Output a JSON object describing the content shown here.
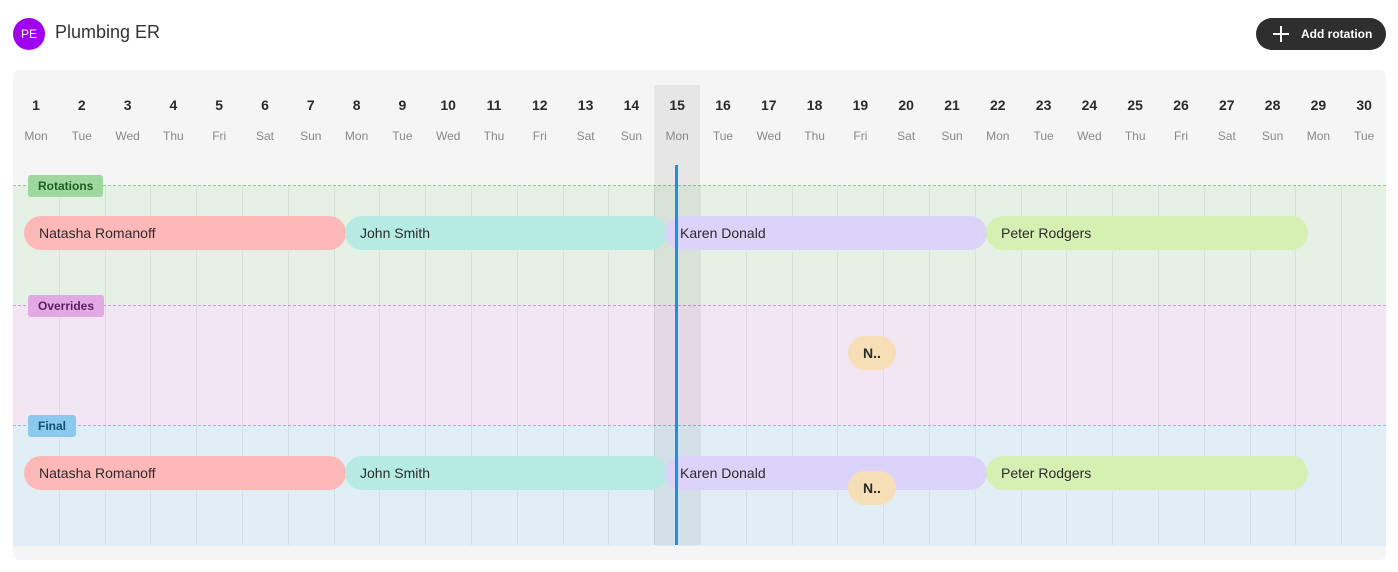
{
  "header": {
    "avatar_initials": "PE",
    "title": "Plumbing ER",
    "add_button_label": "Add rotation"
  },
  "calendar": {
    "today_day": 15,
    "days": [
      {
        "num": "1",
        "dow": "Mon"
      },
      {
        "num": "2",
        "dow": "Tue"
      },
      {
        "num": "3",
        "dow": "Wed"
      },
      {
        "num": "4",
        "dow": "Thu"
      },
      {
        "num": "5",
        "dow": "Fri"
      },
      {
        "num": "6",
        "dow": "Sat"
      },
      {
        "num": "7",
        "dow": "Sun"
      },
      {
        "num": "8",
        "dow": "Mon"
      },
      {
        "num": "9",
        "dow": "Tue"
      },
      {
        "num": "10",
        "dow": "Wed"
      },
      {
        "num": "11",
        "dow": "Thu"
      },
      {
        "num": "12",
        "dow": "Fri"
      },
      {
        "num": "13",
        "dow": "Sat"
      },
      {
        "num": "14",
        "dow": "Sun"
      },
      {
        "num": "15",
        "dow": "Mon"
      },
      {
        "num": "16",
        "dow": "Tue"
      },
      {
        "num": "17",
        "dow": "Wed"
      },
      {
        "num": "18",
        "dow": "Thu"
      },
      {
        "num": "19",
        "dow": "Fri"
      },
      {
        "num": "20",
        "dow": "Sat"
      },
      {
        "num": "21",
        "dow": "Sun"
      },
      {
        "num": "22",
        "dow": "Mon"
      },
      {
        "num": "23",
        "dow": "Tue"
      },
      {
        "num": "24",
        "dow": "Wed"
      },
      {
        "num": "25",
        "dow": "Thu"
      },
      {
        "num": "26",
        "dow": "Fri"
      },
      {
        "num": "27",
        "dow": "Sat"
      },
      {
        "num": "28",
        "dow": "Sun"
      },
      {
        "num": "29",
        "dow": "Mon"
      },
      {
        "num": "30",
        "dow": "Tue"
      }
    ]
  },
  "sections": {
    "rotations_label": "Rotations",
    "overrides_label": "Overrides",
    "final_label": "Final"
  },
  "colors": {
    "natasha": "#ffb8b8",
    "john": "#b6ebe3",
    "karen": "#dcd3fa",
    "peter": "#d6f0b3",
    "override": "#f6dfb6",
    "now_line": "#1f8fe0",
    "avatar": "#a000f0"
  },
  "rotations": [
    {
      "name": "Natasha Romanoff",
      "color": "natasha"
    },
    {
      "name": "John Smith",
      "color": "john"
    },
    {
      "name": "Karen Donald",
      "color": "karen"
    },
    {
      "name": "Peter Rodgers",
      "color": "peter"
    }
  ],
  "overrides": [
    {
      "name": "N..",
      "color": "override"
    }
  ],
  "final": [
    {
      "name": "Natasha Romanoff",
      "color": "natasha"
    },
    {
      "name": "John Smith",
      "color": "john"
    },
    {
      "name": "Karen Donald",
      "color": "karen"
    },
    {
      "name": "Peter Rodgers",
      "color": "peter"
    },
    {
      "name": "N..",
      "color": "override"
    }
  ]
}
